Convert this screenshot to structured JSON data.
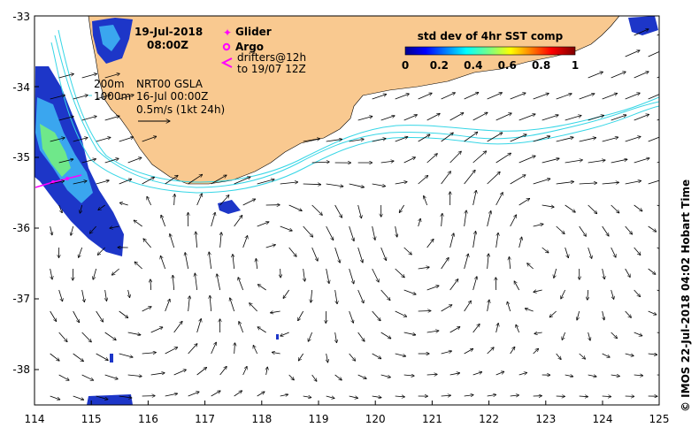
{
  "header": {
    "date": "19-Jul-2018",
    "time": "08:00Z"
  },
  "legend": {
    "glider": "Glider",
    "argo": "Argo",
    "drifters_line1": "drifters@12h",
    "drifters_line2": "to 19/07 12Z",
    "glider_color": "#ff00ff",
    "argo_color": "#ff00ff",
    "drifter_color": "#ff00ff"
  },
  "info": {
    "contour_200": "200m",
    "contour_1000": "1000m",
    "product": "NRT00 GSLA",
    "product_date": "16-Jul 00:00Z",
    "scale": "0.5m/s (1kt 24h)"
  },
  "colorbar": {
    "title": "std dev of 4hr SST comp",
    "ticks": [
      "0",
      "0.2",
      "0.4",
      "0.6",
      "0.8",
      "1"
    ]
  },
  "axes": {
    "x_ticks": [
      "114",
      "115",
      "116",
      "117",
      "118",
      "119",
      "120",
      "121",
      "122",
      "123",
      "124",
      "125"
    ],
    "y_ticks": [
      "-33",
      "-34",
      "-35",
      "-36",
      "-37",
      "-38"
    ]
  },
  "credit": "© IMOS 22-Jul-2018 04:02 Hobart Time",
  "colors": {
    "land": "#f9c990",
    "contour": "#36d6e6",
    "arrow": "#000000"
  }
}
